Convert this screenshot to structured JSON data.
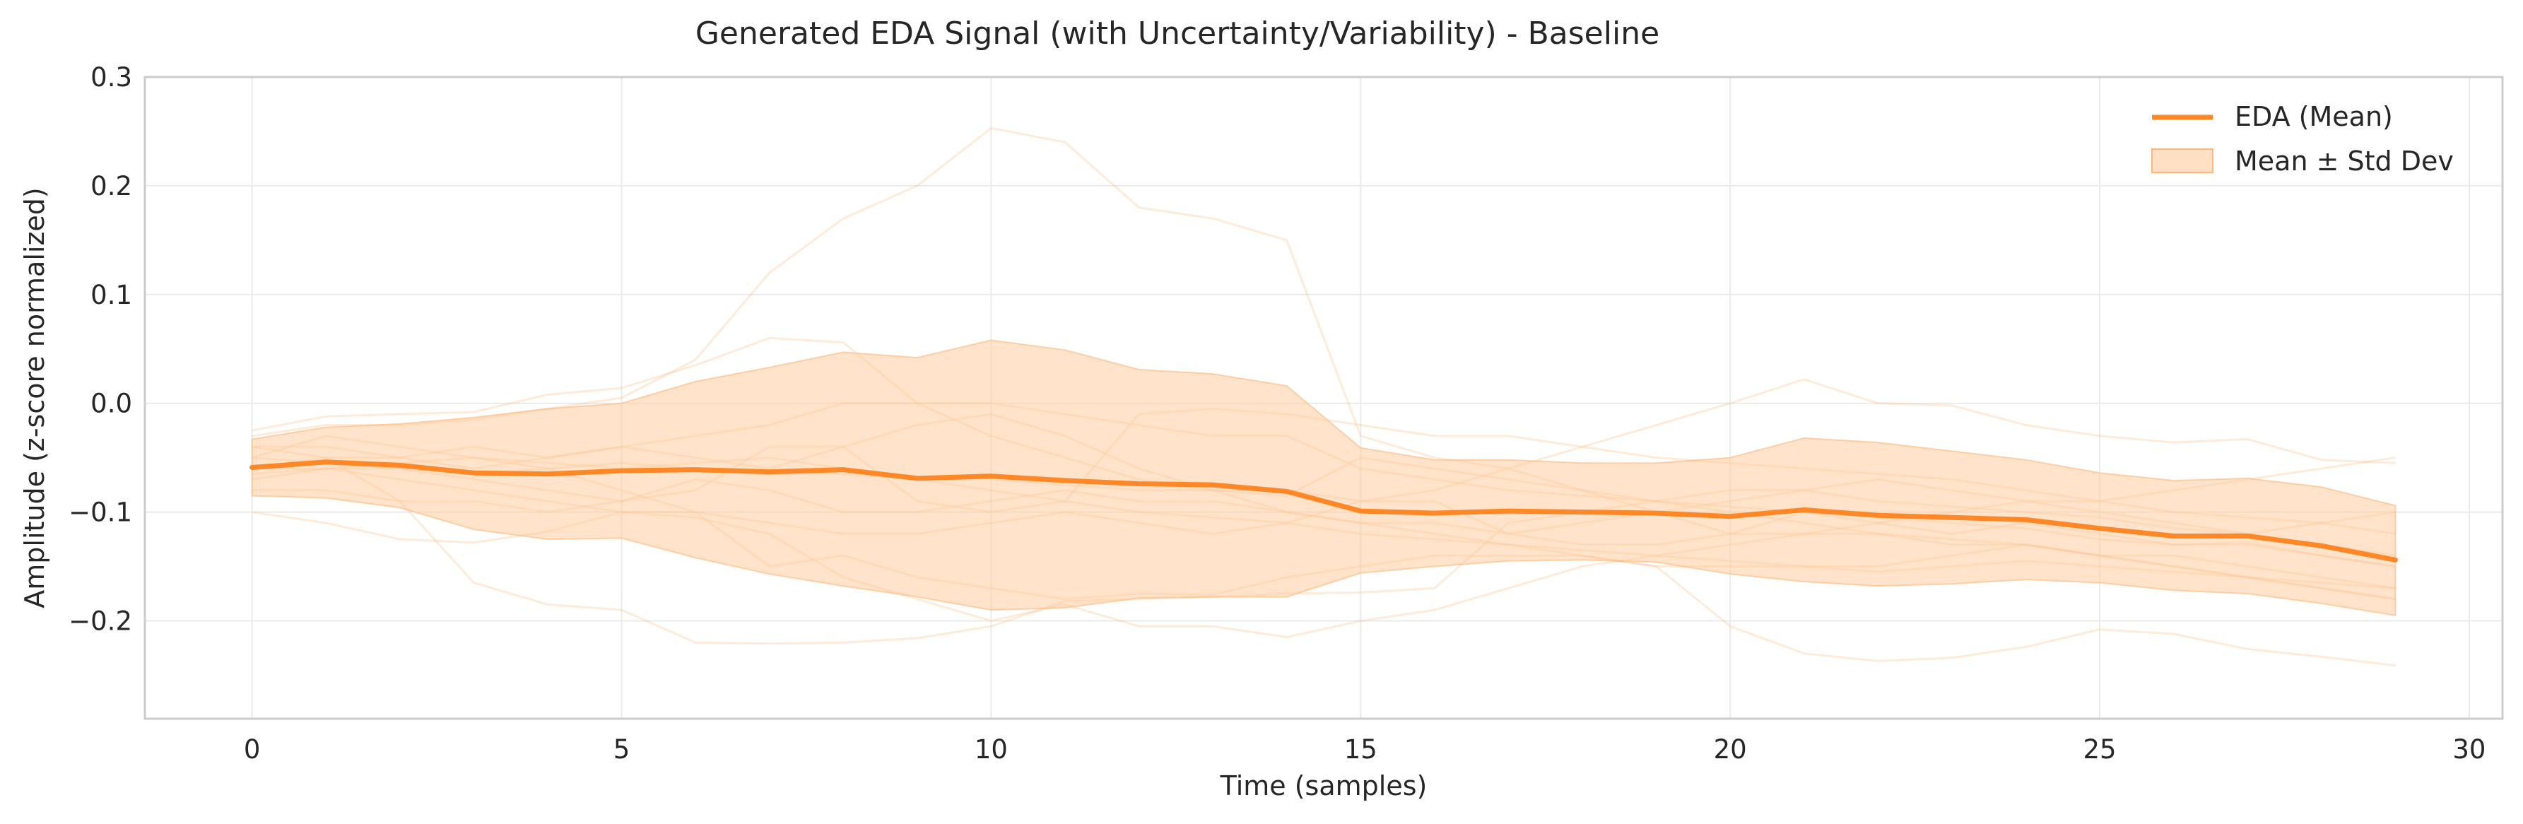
{
  "chart_data": {
    "type": "line",
    "title": "Generated EDA Signal (with Uncertainty/Variability) - Baseline",
    "xlabel": "Time (samples)",
    "ylabel": "Amplitude (z-score normalized)",
    "xlim": [
      -1.45,
      30.45
    ],
    "ylim": [
      -0.29,
      0.3
    ],
    "x_ticks": [
      0,
      5,
      10,
      15,
      20,
      25,
      30
    ],
    "y_ticks": [
      -0.2,
      -0.1,
      0.0,
      0.1,
      0.2,
      0.3
    ],
    "x_tick_labels": [
      "0",
      "5",
      "10",
      "15",
      "20",
      "25",
      "30"
    ],
    "y_tick_labels": [
      "−0.2",
      "−0.1",
      "0.0",
      "0.1",
      "0.2",
      "0.3"
    ],
    "grid": true,
    "legend_position": "top-right",
    "colors": {
      "mean": "#ff8726",
      "band": "#ffcc9e",
      "band_edge": "#ffb87a",
      "samples": "#ffb87a"
    },
    "x": [
      0,
      1,
      2,
      3,
      4,
      5,
      6,
      7,
      8,
      9,
      10,
      11,
      12,
      13,
      14,
      15,
      16,
      17,
      18,
      19,
      20,
      21,
      22,
      23,
      24,
      25,
      26,
      27,
      28,
      29
    ],
    "series": [
      {
        "name": "EDA (Mean)",
        "values": [
          -0.059,
          -0.054,
          -0.057,
          -0.064,
          -0.065,
          -0.062,
          -0.061,
          -0.063,
          -0.061,
          -0.069,
          -0.067,
          -0.071,
          -0.074,
          -0.075,
          -0.081,
          -0.099,
          -0.101,
          -0.099,
          -0.1,
          -0.101,
          -0.104,
          -0.098,
          -0.103,
          -0.105,
          -0.107,
          -0.115,
          -0.122,
          -0.122,
          -0.131,
          -0.144
        ]
      },
      {
        "name": "Mean ± Std Dev",
        "upper": [
          -0.033,
          -0.022,
          -0.019,
          -0.013,
          -0.005,
          0.0,
          0.02,
          0.033,
          0.047,
          0.042,
          0.058,
          0.049,
          0.031,
          0.027,
          0.016,
          -0.041,
          -0.052,
          -0.052,
          -0.055,
          -0.055,
          -0.05,
          -0.032,
          -0.036,
          -0.044,
          -0.052,
          -0.064,
          -0.071,
          -0.069,
          -0.077,
          -0.094
        ],
        "lower": [
          -0.085,
          -0.087,
          -0.096,
          -0.116,
          -0.125,
          -0.124,
          -0.142,
          -0.157,
          -0.168,
          -0.178,
          -0.19,
          -0.188,
          -0.179,
          -0.178,
          -0.178,
          -0.156,
          -0.15,
          -0.145,
          -0.144,
          -0.146,
          -0.157,
          -0.164,
          -0.168,
          -0.166,
          -0.162,
          -0.165,
          -0.172,
          -0.175,
          -0.184,
          -0.195
        ]
      }
    ],
    "samples": [
      [
        -0.03,
        -0.02,
        -0.02,
        -0.015,
        -0.005,
        0.005,
        0.04,
        0.12,
        0.17,
        0.2,
        0.253,
        0.24,
        0.18,
        0.17,
        0.15,
        -0.03,
        -0.05,
        -0.06,
        -0.08,
        -0.1,
        -0.12,
        -0.1,
        -0.11,
        -0.12,
        -0.11,
        -0.12,
        -0.13,
        -0.13,
        -0.14,
        -0.15
      ],
      [
        -0.1,
        -0.11,
        -0.125,
        -0.128,
        -0.118,
        -0.1,
        -0.105,
        -0.12,
        -0.16,
        -0.18,
        -0.2,
        -0.185,
        -0.205,
        -0.205,
        -0.215,
        -0.2,
        -0.19,
        -0.17,
        -0.15,
        -0.14,
        -0.13,
        -0.12,
        -0.12,
        -0.125,
        -0.13,
        -0.14,
        -0.15,
        -0.16,
        -0.17,
        -0.18
      ],
      [
        -0.025,
        -0.012,
        -0.01,
        -0.008,
        0.008,
        0.014,
        0.035,
        0.06,
        0.056,
        0.0,
        -0.03,
        -0.05,
        -0.07,
        -0.08,
        -0.08,
        -0.09,
        -0.08,
        -0.06,
        -0.04,
        -0.02,
        0.0,
        0.022,
        0.0,
        -0.002,
        -0.02,
        -0.03,
        -0.036,
        -0.033,
        -0.052,
        -0.055
      ],
      [
        -0.05,
        -0.03,
        -0.04,
        -0.05,
        -0.06,
        -0.08,
        -0.1,
        -0.15,
        -0.14,
        -0.16,
        -0.17,
        -0.18,
        -0.175,
        -0.176,
        -0.16,
        -0.15,
        -0.14,
        -0.14,
        -0.14,
        -0.15,
        -0.205,
        -0.23,
        -0.237,
        -0.234,
        -0.224,
        -0.208,
        -0.212,
        -0.226,
        -0.233,
        -0.241
      ],
      [
        -0.04,
        -0.05,
        -0.09,
        -0.165,
        -0.185,
        -0.19,
        -0.22,
        -0.221,
        -0.22,
        -0.216,
        -0.205,
        -0.182,
        -0.18,
        -0.178,
        -0.175,
        -0.174,
        -0.17,
        -0.11,
        -0.1,
        -0.09,
        -0.08,
        -0.08,
        -0.09,
        -0.095,
        -0.1,
        -0.105,
        -0.115,
        -0.12,
        -0.13,
        -0.14
      ],
      [
        -0.06,
        -0.05,
        -0.05,
        -0.04,
        -0.05,
        -0.04,
        -0.05,
        -0.06,
        -0.04,
        -0.02,
        -0.01,
        -0.03,
        -0.06,
        -0.08,
        -0.1,
        -0.11,
        -0.12,
        -0.13,
        -0.14,
        -0.15,
        -0.15,
        -0.15,
        -0.15,
        -0.14,
        -0.13,
        -0.14,
        -0.14,
        -0.15,
        -0.16,
        -0.17
      ],
      [
        -0.08,
        -0.08,
        -0.09,
        -0.09,
        -0.1,
        -0.09,
        -0.08,
        -0.04,
        -0.04,
        -0.09,
        -0.1,
        -0.09,
        -0.01,
        -0.005,
        -0.01,
        -0.02,
        -0.03,
        -0.03,
        -0.04,
        -0.05,
        -0.055,
        -0.06,
        -0.065,
        -0.07,
        -0.08,
        -0.09,
        -0.1,
        -0.105,
        -0.11,
        -0.12
      ],
      [
        -0.06,
        -0.06,
        -0.07,
        -0.08,
        -0.09,
        -0.1,
        -0.1,
        -0.11,
        -0.12,
        -0.12,
        -0.11,
        -0.1,
        -0.11,
        -0.12,
        -0.11,
        -0.09,
        -0.09,
        -0.12,
        -0.11,
        -0.1,
        -0.09,
        -0.08,
        -0.07,
        -0.08,
        -0.09,
        -0.1,
        -0.11,
        -0.12,
        -0.11,
        -0.1
      ],
      [
        -0.04,
        -0.04,
        -0.05,
        -0.06,
        -0.05,
        -0.04,
        -0.03,
        -0.02,
        0.0,
        0.0,
        0.0,
        -0.01,
        -0.02,
        -0.03,
        -0.03,
        -0.06,
        -0.07,
        -0.08,
        -0.085,
        -0.09,
        -0.095,
        -0.1,
        -0.105,
        -0.11,
        -0.115,
        -0.125,
        -0.13,
        -0.128,
        -0.14,
        -0.15
      ],
      [
        -0.07,
        -0.06,
        -0.06,
        -0.07,
        -0.08,
        -0.09,
        -0.07,
        -0.08,
        -0.1,
        -0.1,
        -0.09,
        -0.08,
        -0.09,
        -0.09,
        -0.1,
        -0.11,
        -0.11,
        -0.12,
        -0.13,
        -0.13,
        -0.12,
        -0.12,
        -0.11,
        -0.1,
        -0.09,
        -0.09,
        -0.08,
        -0.07,
        -0.06,
        -0.05
      ],
      [
        -0.05,
        -0.055,
        -0.06,
        -0.065,
        -0.06,
        -0.055,
        -0.06,
        -0.065,
        -0.065,
        -0.07,
        -0.07,
        -0.075,
        -0.08,
        -0.08,
        -0.085,
        -0.05,
        -0.06,
        -0.07,
        -0.08,
        -0.09,
        -0.1,
        -0.11,
        -0.12,
        -0.13,
        -0.13,
        -0.14,
        -0.15,
        -0.16,
        -0.17,
        -0.18
      ],
      [
        -0.065,
        -0.06,
        -0.055,
        -0.05,
        -0.055,
        -0.06,
        -0.055,
        -0.05,
        -0.06,
        -0.07,
        -0.08,
        -0.09,
        -0.1,
        -0.105,
        -0.11,
        -0.12,
        -0.125,
        -0.13,
        -0.135,
        -0.14,
        -0.145,
        -0.15,
        -0.155,
        -0.15,
        -0.145,
        -0.15,
        -0.155,
        -0.16,
        -0.165,
        -0.17
      ]
    ],
    "legend": [
      {
        "label": "EDA (Mean)",
        "kind": "line"
      },
      {
        "label": "Mean ± Std Dev",
        "kind": "patch"
      }
    ]
  }
}
